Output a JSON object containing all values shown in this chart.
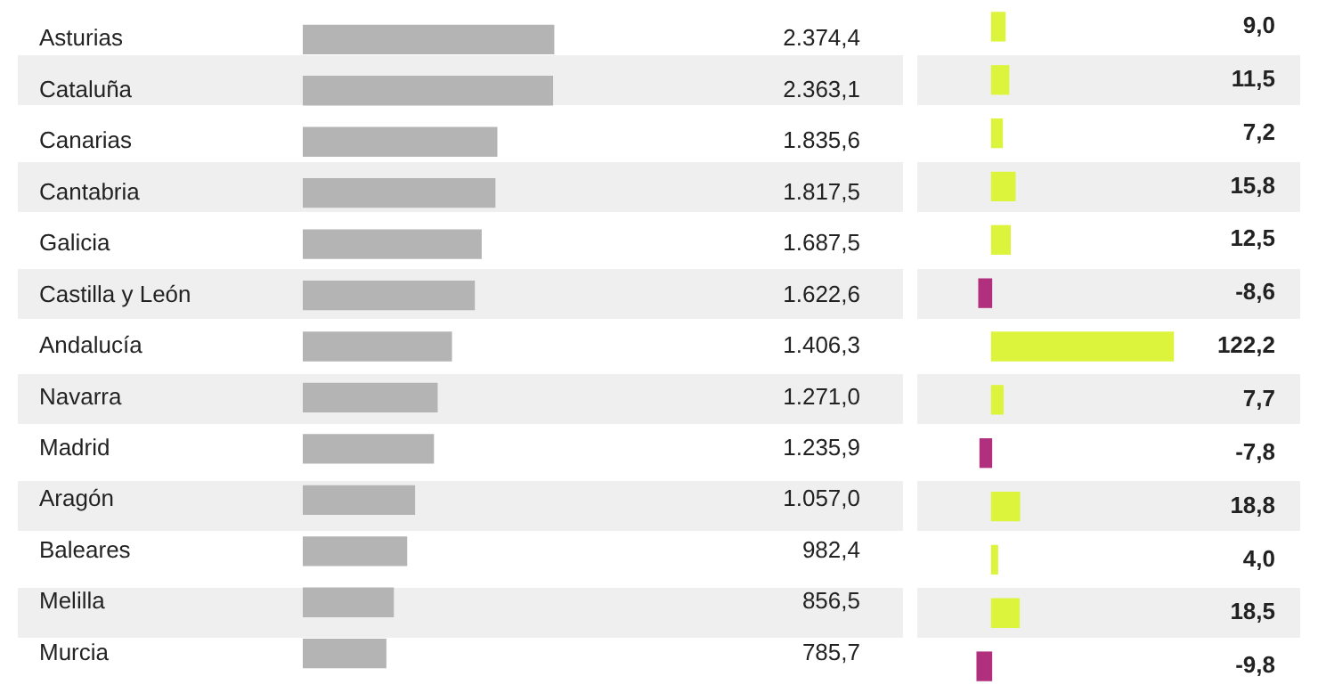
{
  "chart_data": [
    {
      "type": "bar",
      "orientation": "horizontal",
      "tick_labels": "y",
      "categories": [
        "Asturias",
        "Cataluña",
        "Canarias",
        "Cantabria",
        "Galicia",
        "Castilla y León",
        "Andalucía",
        "Navarra",
        "Madrid",
        "Aragón",
        "Baleares",
        "Melilla",
        "Murcia"
      ],
      "values": [
        2374.4,
        2363.1,
        1835.6,
        1817.5,
        1687.5,
        1622.6,
        1406.3,
        1271.0,
        1235.9,
        1057.0,
        982.4,
        856.5,
        785.7
      ],
      "value_labels": [
        "2.374,4",
        "2.363,1",
        "1.835,6",
        "1.817,5",
        "1.687,5",
        "1.622,6",
        "1.406,3",
        "1.271,0",
        "1.235,9",
        "1.057,0",
        "982,4",
        "856,5",
        "785,7"
      ],
      "color": "#b4b4b4"
    },
    {
      "type": "bar",
      "orientation": "horizontal",
      "tick_labels": false,
      "categories": [
        null,
        null,
        null,
        null,
        null,
        null,
        null,
        null,
        null,
        null,
        null,
        null,
        null
      ],
      "values": [
        9.0,
        11.5,
        7.2,
        15.8,
        12.5,
        -8.6,
        122.2,
        7.7,
        -7.8,
        18.8,
        4.0,
        18.5,
        -9.8
      ],
      "value_labels": [
        "9,0",
        "11,5",
        "7,2",
        "15,8",
        "12,5",
        "-8,6",
        "122,2",
        "7,7",
        "-7,8",
        "18,8",
        "4,0",
        "18,5",
        "-9,8"
      ],
      "colors": [
        "#dcf53c",
        "#dcf53c",
        "#dcf53c",
        "#dcf53c",
        "#dcf53c",
        "#b0307e",
        "#dcf53c",
        "#dcf53c",
        "#b0307e",
        "#dcf53c",
        "#dcf53c",
        "#dcf53c",
        "#b0307e"
      ]
    }
  ]
}
